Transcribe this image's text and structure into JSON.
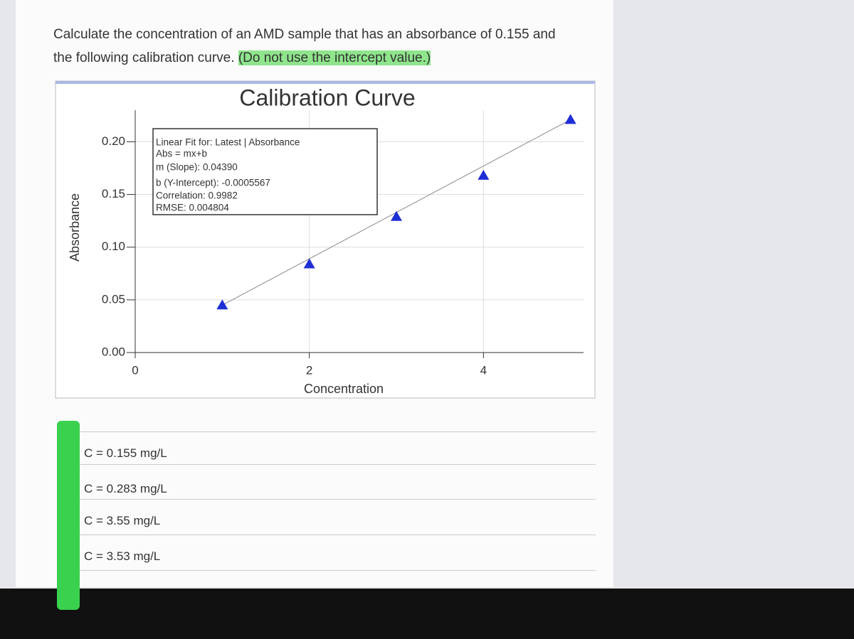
{
  "question": {
    "line1": "Calculate the concentration of an AMD sample that has an absorbance of 0.155 and",
    "line2": "the following calibration curve.",
    "highlight": "(Do not use the intercept value.)"
  },
  "chart_data": {
    "type": "scatter",
    "title": "Calibration Curve",
    "xlabel": "Concentration",
    "ylabel": "Absorbance",
    "x": [
      1,
      2,
      3,
      4,
      5
    ],
    "values": [
      0.045,
      0.084,
      0.129,
      0.168,
      0.221
    ],
    "color": "#1f2fd6",
    "xlim": [
      0,
      5.15
    ],
    "ylim": [
      0,
      0.23
    ],
    "xticks": [
      0,
      2,
      4
    ],
    "yticks": [
      {
        "value": 0,
        "label": "0.00"
      },
      0.05,
      {
        "value": 0.1,
        "label": "0.10"
      },
      0.15,
      {
        "value": 0.2,
        "label": "0.20"
      }
    ],
    "grid": true,
    "fit_box": [
      "Linear Fit for: Latest | Absorbance",
      "Abs = mx+b",
      "m (Slope): 0.04390",
      "b (Y-Intercept): -0.0005567",
      "Correlation: 0.9982",
      "RMSE: 0.004804"
    ]
  },
  "options": [
    "C = 0.155 mg/L",
    "C = 0.283 mg/L",
    "C = 3.55 mg/L",
    "C = 3.53 mg/L"
  ]
}
